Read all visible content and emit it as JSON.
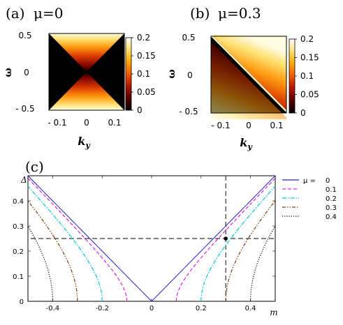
{
  "colors": {
    "hot_stops": [
      "#000000",
      "#5a0000",
      "#b41400",
      "#ef5a00",
      "#ffa500",
      "#ffe070",
      "#ffffff"
    ],
    "series": [
      "#2020d0",
      "#e020e0",
      "#00c8d8",
      "#8a3a10",
      "#000000"
    ],
    "guide": "#333333"
  },
  "chart_data": [
    {
      "type": "heatmap",
      "panel_label": "(a)",
      "title": "μ=0",
      "xlabel": "k_y",
      "ylabel": "ω",
      "xlim": [
        -0.13,
        0.13
      ],
      "ylim": [
        -0.55,
        0.55
      ],
      "x_ticks": [
        "- 0.1",
        "0",
        "0.1"
      ],
      "y_ticks": [
        "0.5",
        "0",
        "- 0.5"
      ],
      "colorbar": {
        "range": [
          0,
          0.2
        ],
        "ticks": [
          "0.2",
          "0.15",
          "0.1",
          "0.05",
          "0"
        ]
      },
      "mu": 0
    },
    {
      "type": "heatmap",
      "panel_label": "(b)",
      "title": "μ=0.3",
      "xlabel": "k_y",
      "ylabel": "ω",
      "xlim": [
        -0.13,
        0.13
      ],
      "ylim": [
        -0.55,
        0.55
      ],
      "x_ticks": [
        "- 0.1",
        "0",
        "0.1"
      ],
      "y_ticks": [
        "0.5",
        "0",
        "- 0.5"
      ],
      "colorbar": {
        "range": [
          0,
          0.2
        ],
        "ticks": [
          "0.2",
          "0.15",
          "0.1",
          "0.05",
          "0"
        ]
      },
      "mu": 0.3
    },
    {
      "type": "line",
      "panel_label": "(c)",
      "xlabel": "m",
      "ylabel": "Δ",
      "xlim": [
        -0.5,
        0.5
      ],
      "ylim": [
        0,
        0.5
      ],
      "x_ticks": [
        "-0.4",
        "-0.2",
        "0",
        "0.2",
        "0.4"
      ],
      "y_ticks": [
        "0",
        "0.1",
        "0.2",
        "0.3",
        "0.4"
      ],
      "legend_position": "right",
      "legend_prefix": "μ =",
      "series": [
        {
          "name": "0",
          "mu": 0,
          "style": "solid"
        },
        {
          "name": "0.1",
          "mu": 0.1,
          "style": "dashed"
        },
        {
          "name": "0.2",
          "mu": 0.2,
          "style": "dashdot"
        },
        {
          "name": "0.3",
          "mu": 0.3,
          "style": "dashdotdot"
        },
        {
          "name": "0.4",
          "mu": 0.4,
          "style": "dotted"
        }
      ],
      "guides": {
        "vertical_x": 0.3,
        "horizontal_y": 0.25,
        "marker": [
          0.3,
          0.25
        ]
      }
    }
  ]
}
